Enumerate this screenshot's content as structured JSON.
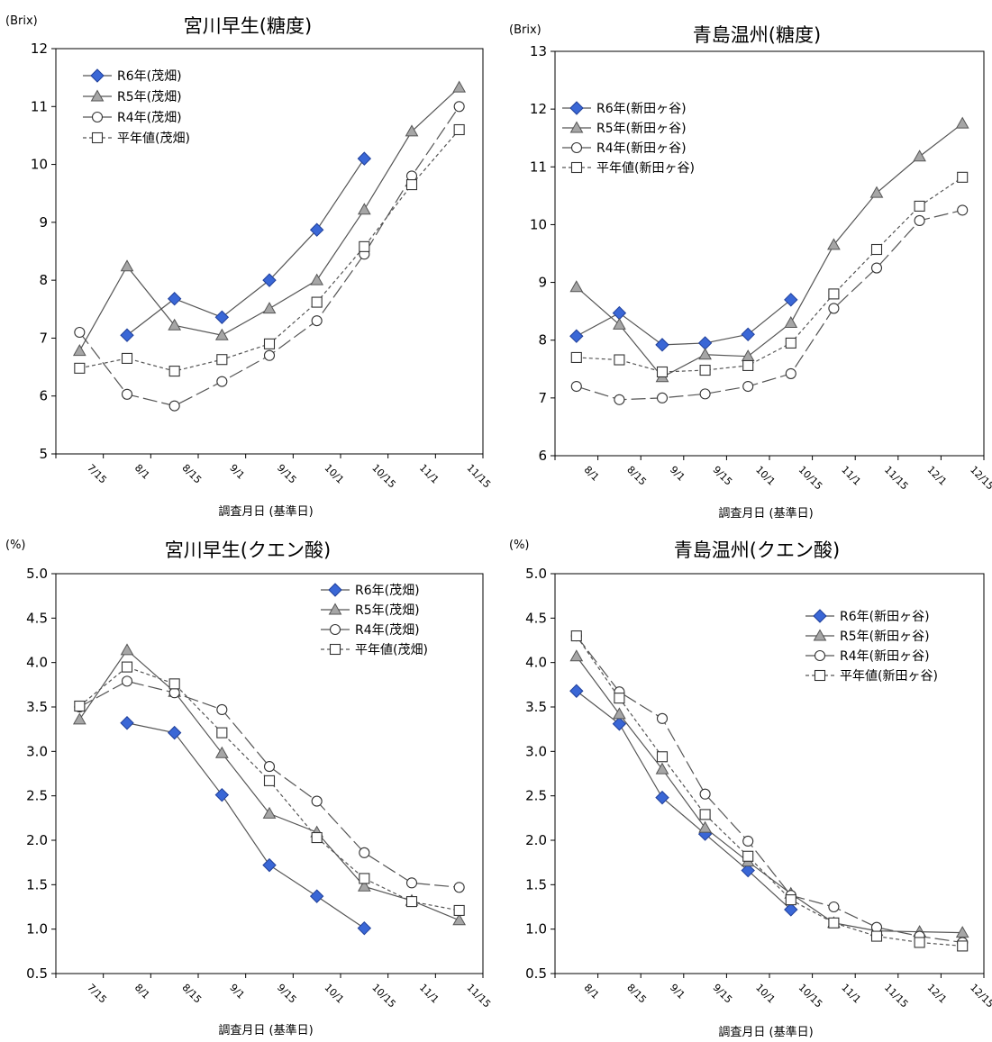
{
  "chart_data": [
    {
      "type": "line",
      "title": "宮川早生(糖度)",
      "unit": "(Brix)",
      "xlabel": "調査月日 (基準日)",
      "ylabel": "",
      "ylim": [
        5,
        12
      ],
      "yticks": [
        "5",
        "6",
        "7",
        "8",
        "9",
        "10",
        "11",
        "12"
      ],
      "x": [
        "7/15",
        "8/1",
        "8/15",
        "9/1",
        "9/15",
        "10/1",
        "10/15",
        "11/1",
        "11/15"
      ],
      "grid": false,
      "legend_position": "top-left",
      "series": [
        {
          "name": "R6年(茂畑)",
          "marker": "diamond",
          "values": [
            null,
            7.05,
            7.68,
            7.36,
            8.0,
            8.87,
            10.1,
            null,
            null
          ]
        },
        {
          "name": "R5年(茂畑)",
          "marker": "triangle",
          "values": [
            6.78,
            8.24,
            7.22,
            7.05,
            7.51,
            8.0,
            9.22,
            10.57,
            11.33
          ]
        },
        {
          "name": "R4年(茂畑)",
          "marker": "circle",
          "values": [
            7.1,
            6.03,
            5.83,
            6.25,
            6.7,
            7.3,
            8.45,
            9.8,
            11.0
          ]
        },
        {
          "name": "平年値(茂畑)",
          "marker": "square",
          "values": [
            6.48,
            6.65,
            6.43,
            6.63,
            6.9,
            7.62,
            8.58,
            9.65,
            10.6
          ]
        }
      ]
    },
    {
      "type": "line",
      "title": "青島温州(糖度)",
      "unit": "(Brix)",
      "xlabel": "調査月日 (基準日)",
      "ylabel": "",
      "ylim": [
        6,
        13
      ],
      "yticks": [
        "6",
        "7",
        "8",
        "9",
        "10",
        "11",
        "12",
        "13"
      ],
      "x": [
        "8/1",
        "8/15",
        "9/1",
        "9/15",
        "10/1",
        "10/15",
        "11/1",
        "11/15",
        "12/1",
        "12/15"
      ],
      "grid": false,
      "legend_position": "top-left",
      "series": [
        {
          "name": "R6年(新田ヶ谷)",
          "marker": "diamond",
          "values": [
            8.07,
            8.47,
            7.92,
            7.95,
            8.1,
            8.7,
            null,
            null,
            null,
            null
          ]
        },
        {
          "name": "R5年(新田ヶ谷)",
          "marker": "triangle",
          "values": [
            8.92,
            8.27,
            7.36,
            7.75,
            7.72,
            8.3,
            9.65,
            10.55,
            11.18,
            11.75
          ]
        },
        {
          "name": "R4年(新田ヶ谷)",
          "marker": "circle",
          "values": [
            7.2,
            6.97,
            7.0,
            7.07,
            7.2,
            7.42,
            8.55,
            9.25,
            10.07,
            10.25
          ]
        },
        {
          "name": "平年値(新田ヶ谷)",
          "marker": "square",
          "values": [
            7.7,
            7.66,
            7.45,
            7.48,
            7.56,
            7.95,
            8.8,
            9.57,
            10.32,
            10.82
          ]
        }
      ]
    },
    {
      "type": "line",
      "title": "宮川早生(クエン酸)",
      "unit": "(%)",
      "xlabel": "調査月日 (基準日)",
      "ylabel": "",
      "ylim": [
        0.5,
        5.0
      ],
      "yticks": [
        "0.5",
        "1.0",
        "1.5",
        "2.0",
        "2.5",
        "3.0",
        "3.5",
        "4.0",
        "4.5",
        "5.0"
      ],
      "x": [
        "7/15",
        "8/1",
        "8/15",
        "9/1",
        "9/15",
        "10/1",
        "10/15",
        "11/1",
        "11/15"
      ],
      "grid": false,
      "legend_position": "top-right",
      "series": [
        {
          "name": "R6年(茂畑)",
          "marker": "diamond",
          "values": [
            null,
            3.32,
            3.21,
            2.51,
            1.72,
            1.37,
            1.01,
            null,
            null
          ]
        },
        {
          "name": "R5年(茂畑)",
          "marker": "triangle",
          "values": [
            3.36,
            4.14,
            3.67,
            2.98,
            2.3,
            2.09,
            1.48,
            1.32,
            1.1
          ]
        },
        {
          "name": "R4年(茂畑)",
          "marker": "circle",
          "values": [
            3.5,
            3.79,
            3.66,
            3.47,
            2.83,
            2.44,
            1.86,
            1.52,
            1.47
          ]
        },
        {
          "name": "平年値(茂畑)",
          "marker": "square",
          "values": [
            3.51,
            3.95,
            3.76,
            3.21,
            2.67,
            2.03,
            1.57,
            1.31,
            1.21
          ]
        }
      ]
    },
    {
      "type": "line",
      "title": "青島温州(クエン酸)",
      "unit": "(%)",
      "xlabel": "調査月日 (基準日)",
      "ylabel": "",
      "ylim": [
        0.5,
        5.0
      ],
      "yticks": [
        "0.5",
        "1.0",
        "1.5",
        "2.0",
        "2.5",
        "3.0",
        "3.5",
        "4.0",
        "4.5",
        "5.0"
      ],
      "x": [
        "8/1",
        "8/15",
        "9/1",
        "9/15",
        "10/1",
        "10/15",
        "11/1",
        "11/15",
        "12/1",
        "12/15"
      ],
      "grid": false,
      "legend_position": "top-right",
      "series": [
        {
          "name": "R6年(新田ヶ谷)",
          "marker": "diamond",
          "values": [
            3.68,
            3.31,
            2.48,
            2.07,
            1.66,
            1.22,
            null,
            null,
            null,
            null
          ]
        },
        {
          "name": "R5年(新田ヶ谷)",
          "marker": "triangle",
          "values": [
            4.07,
            3.42,
            2.8,
            2.14,
            1.76,
            1.4,
            1.07,
            0.98,
            0.97,
            0.96
          ]
        },
        {
          "name": "R4年(新田ヶ谷)",
          "marker": "circle",
          "values": [
            4.3,
            3.67,
            3.37,
            2.52,
            1.99,
            1.38,
            1.25,
            1.02,
            0.92,
            0.85
          ]
        },
        {
          "name": "平年値(新田ヶ谷)",
          "marker": "square",
          "values": [
            4.3,
            3.6,
            2.94,
            2.29,
            1.82,
            1.33,
            1.07,
            0.92,
            0.85,
            0.81
          ]
        }
      ]
    }
  ]
}
